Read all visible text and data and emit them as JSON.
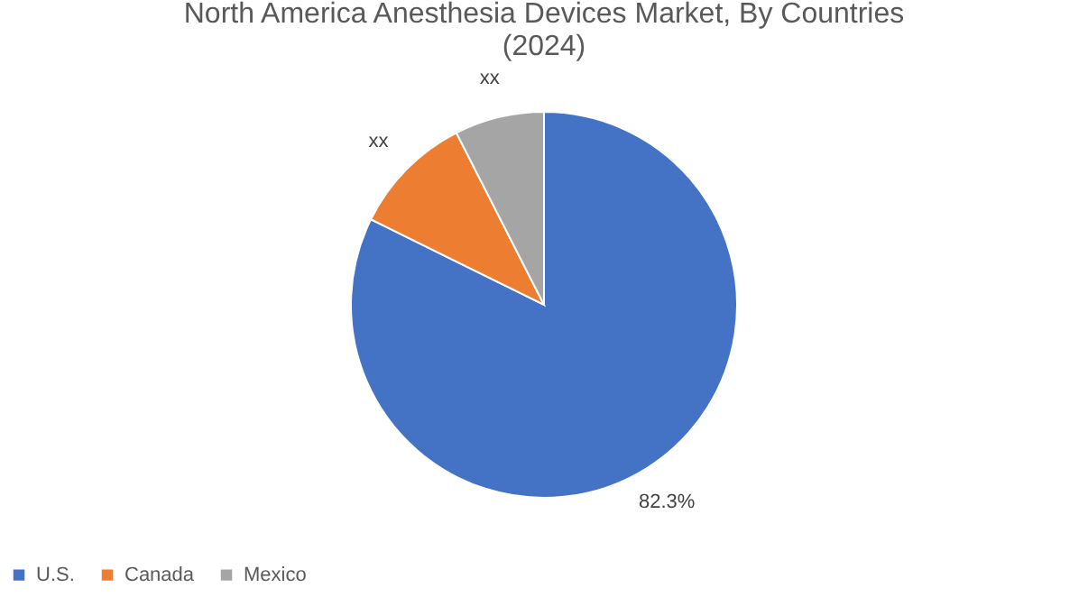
{
  "chart_data": {
    "type": "pie",
    "title": "North America Anesthesia Devices Market, By Countries (2024)",
    "categories": [
      "U.S.",
      "Canada",
      "Mexico"
    ],
    "values": [
      82.3,
      10.2,
      7.5
    ],
    "colors": [
      "#4472c4",
      "#ed7d31",
      "#a5a5a5"
    ],
    "value_labels": [
      "82.3%",
      "xx",
      "xx"
    ],
    "legend": "bottom"
  }
}
